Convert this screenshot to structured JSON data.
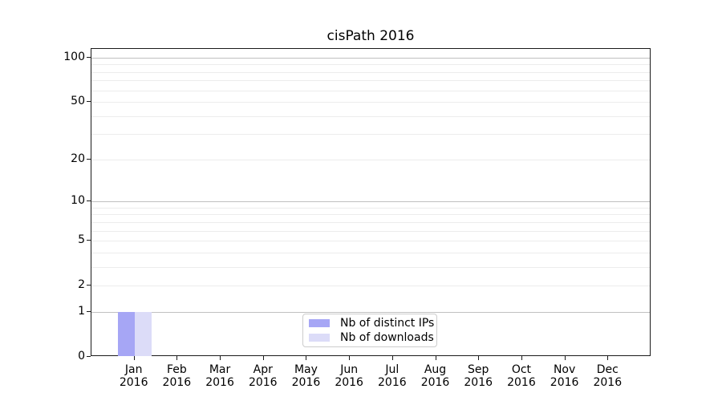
{
  "title": "cisPath 2016",
  "chart_data": {
    "type": "bar",
    "title": "cisPath 2016",
    "categories": [
      "Jan",
      "Feb",
      "Mar",
      "Apr",
      "May",
      "Jun",
      "Jul",
      "Aug",
      "Sep",
      "Oct",
      "Nov",
      "Dec"
    ],
    "year": "2016",
    "series": [
      {
        "name": "Nb of distinct IPs",
        "color": "#a6a6f5",
        "values": [
          1,
          0,
          0,
          0,
          0,
          0,
          0,
          0,
          0,
          0,
          0,
          0
        ]
      },
      {
        "name": "Nb of downloads",
        "color": "#dcdcf8",
        "values": [
          1,
          0,
          0,
          0,
          0,
          0,
          0,
          0,
          0,
          0,
          0,
          0
        ]
      }
    ],
    "xlabel": "",
    "ylabel": "",
    "y_scale": "log1p",
    "y_tick_values": [
      0,
      1,
      2,
      5,
      10,
      20,
      50,
      100
    ],
    "y_tick_labels": [
      "0",
      "1",
      "2",
      "5",
      "10",
      "20",
      "50",
      "100"
    ],
    "y_major_gridlines": [
      1,
      10,
      100
    ],
    "y_minor_gridlines": [
      2,
      3,
      4,
      5,
      6,
      7,
      8,
      9,
      20,
      30,
      40,
      50,
      60,
      70,
      80,
      90
    ],
    "ylim": [
      0,
      115
    ],
    "grid": true,
    "legend_position": "lower-center"
  },
  "legend": {
    "items": [
      {
        "label": "Nb of distinct IPs",
        "color": "#a6a6f5"
      },
      {
        "label": "Nb of downloads",
        "color": "#dcdcf8"
      }
    ]
  },
  "colors": {
    "spine": "#1a1a1a",
    "major_grid": "#c0c0c0",
    "minor_grid": "#ececec",
    "background": "#ffffff"
  }
}
